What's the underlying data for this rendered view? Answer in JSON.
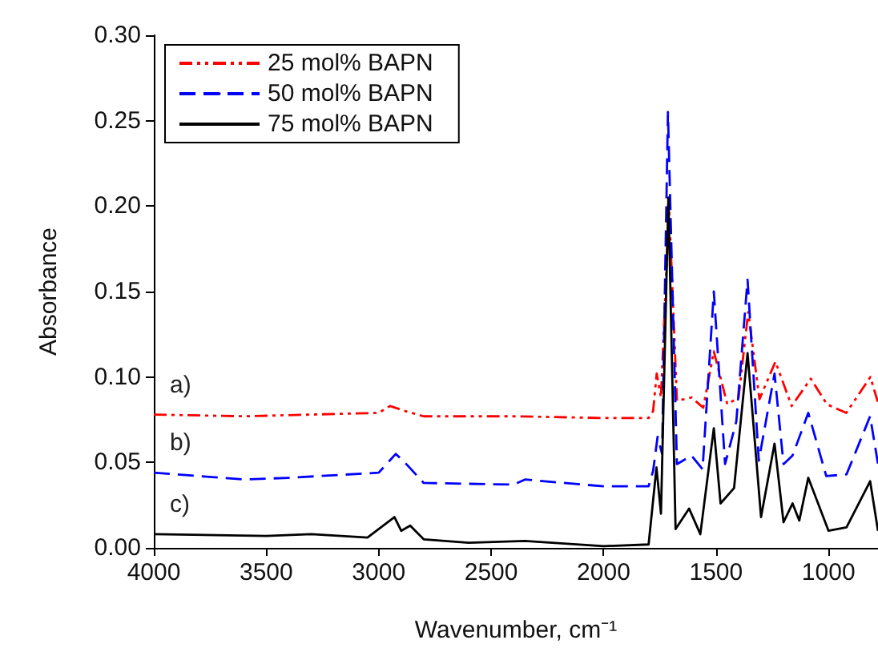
{
  "chart_data": {
    "type": "line",
    "xlabel": "Wavenumber, cm⁻¹",
    "ylabel": "Absorbance",
    "xlim": [
      4000,
      780
    ],
    "xticks": [
      4000,
      3500,
      3000,
      2500,
      2000,
      1500,
      1000
    ],
    "ylim": [
      0,
      0.3
    ],
    "yticks": [
      {
        "value": 0,
        "label": "0.00"
      },
      {
        "value": 0.05,
        "label": "0.05"
      },
      {
        "value": 0.1,
        "label": "0.10"
      },
      {
        "value": 0.15,
        "label": "0.15"
      },
      {
        "value": 0.2,
        "label": "0.20"
      },
      {
        "value": 0.25,
        "label": "0.25"
      },
      {
        "value": 0.3,
        "label": "0.30"
      }
    ],
    "grid": false,
    "legend": "top left",
    "marker": "none",
    "annotations": [
      "a)",
      "b)",
      "c)"
    ],
    "series": [
      {
        "name": "25 mol% BAPN",
        "color": "#ff0000",
        "line_style": "dashdot",
        "x": [
          4000,
          3600,
          3300,
          3000,
          2950,
          2880,
          2800,
          2400,
          2000,
          1800,
          1780,
          1764,
          1745,
          1709,
          1674,
          1609,
          1557,
          1510,
          1450,
          1400,
          1357,
          1307,
          1236,
          1164,
          1079,
          1007,
          921,
          814,
          780
        ],
        "values": [
          0.078,
          0.077,
          0.078,
          0.079,
          0.083,
          0.08,
          0.077,
          0.077,
          0.076,
          0.076,
          0.08,
          0.102,
          0.088,
          0.2,
          0.086,
          0.088,
          0.082,
          0.115,
          0.084,
          0.088,
          0.138,
          0.087,
          0.109,
          0.083,
          0.099,
          0.084,
          0.079,
          0.1,
          0.085
        ]
      },
      {
        "name": "50 mol% BAPN",
        "color": "#0000ff",
        "line_style": "dashed",
        "x": [
          4000,
          3600,
          3400,
          3000,
          2924,
          2870,
          2800,
          2400,
          2350,
          2000,
          1800,
          1780,
          1760,
          1740,
          1714,
          1674,
          1609,
          1560,
          1510,
          1460,
          1410,
          1360,
          1310,
          1240,
          1200,
          1160,
          1090,
          1010,
          920,
          815,
          780
        ],
        "values": [
          0.044,
          0.04,
          0.041,
          0.044,
          0.055,
          0.048,
          0.038,
          0.037,
          0.04,
          0.036,
          0.036,
          0.045,
          0.065,
          0.055,
          0.255,
          0.049,
          0.054,
          0.046,
          0.15,
          0.049,
          0.074,
          0.157,
          0.051,
          0.102,
          0.049,
          0.054,
          0.079,
          0.042,
          0.043,
          0.077,
          0.049
        ]
      },
      {
        "name": "75 mol% BAPN",
        "color": "#000000",
        "line_style": "solid",
        "x": [
          4000,
          3500,
          3300,
          3050,
          2930,
          2900,
          2860,
          2800,
          2600,
          2350,
          2000,
          1800,
          1765,
          1745,
          1712,
          1680,
          1620,
          1570,
          1510,
          1480,
          1420,
          1360,
          1300,
          1240,
          1200,
          1160,
          1130,
          1090,
          1000,
          920,
          815,
          780
        ],
        "values": [
          0.008,
          0.007,
          0.008,
          0.006,
          0.018,
          0.01,
          0.013,
          0.005,
          0.003,
          0.004,
          0.001,
          0.002,
          0.047,
          0.02,
          0.205,
          0.011,
          0.023,
          0.008,
          0.07,
          0.026,
          0.035,
          0.114,
          0.018,
          0.061,
          0.015,
          0.026,
          0.016,
          0.041,
          0.01,
          0.012,
          0.039,
          0.01
        ]
      }
    ]
  }
}
